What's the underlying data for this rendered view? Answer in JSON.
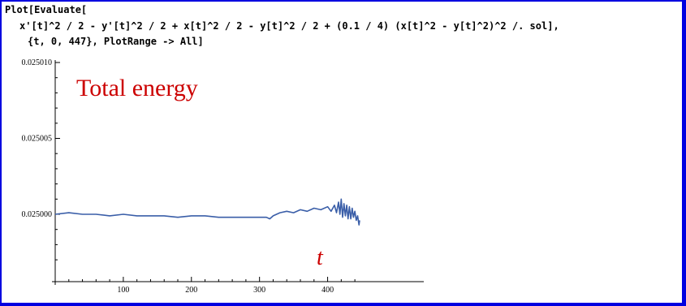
{
  "code": {
    "line1": "Plot[Evaluate[",
    "line2": "x'[t]^2 / 2 - y'[t]^2 / 2 + x[t]^2 / 2 - y[t]^2 / 2 + (0.1 / 4) (x[t]^2 - y[t]^2)^2 /. sol],",
    "line3": "{t, 0, 447}, PlotRange -> All]"
  },
  "annotations": {
    "title": "Total energy",
    "xvar": "t"
  },
  "colors": {
    "background": "#0000e0",
    "panel": "#ffffff",
    "series": "#3a5ea8",
    "annotation": "#cc0000"
  },
  "chart_data": {
    "type": "line",
    "xlim": [
      0,
      447
    ],
    "ylim": [
      0.024997,
      0.02501
    ],
    "xticks": [
      100,
      200,
      300,
      400
    ],
    "xtick_labels": [
      "100",
      "200",
      "300",
      "400"
    ],
    "yticks": [
      0.025,
      0.025005,
      0.02501
    ],
    "ytick_labels": [
      "0.025000",
      "0.025005",
      "0.025010"
    ],
    "grid": false,
    "series": [
      {
        "x": [
          0,
          20,
          40,
          60,
          80,
          100,
          120,
          140,
          160,
          180,
          200,
          220,
          240,
          260,
          280,
          300,
          310,
          315,
          320,
          330,
          340,
          350,
          360,
          370,
          380,
          390,
          400,
          405,
          410,
          413,
          416,
          418,
          420,
          422,
          424,
          426,
          428,
          430,
          432,
          434,
          436,
          438,
          440,
          442,
          444,
          446,
          447
        ],
        "y": [
          0.025,
          0.0250001,
          0.025,
          0.025,
          0.0249999,
          0.025,
          0.0249999,
          0.0249999,
          0.0249999,
          0.0249998,
          0.0249999,
          0.0249999,
          0.0249998,
          0.0249998,
          0.0249998,
          0.0249998,
          0.0249998,
          0.0249997,
          0.0249999,
          0.0250001,
          0.0250002,
          0.0250001,
          0.0250003,
          0.0250002,
          0.0250004,
          0.0250003,
          0.0250005,
          0.0250002,
          0.0250006,
          0.0250001,
          0.0250008,
          0.025,
          0.025001,
          0.0249998,
          0.0250007,
          0.0249999,
          0.0250006,
          0.0249997,
          0.0250005,
          0.0249997,
          0.0250004,
          0.0249998,
          0.0250002,
          0.0249996,
          0.0249999,
          0.0249993,
          0.0249996
        ]
      }
    ]
  }
}
